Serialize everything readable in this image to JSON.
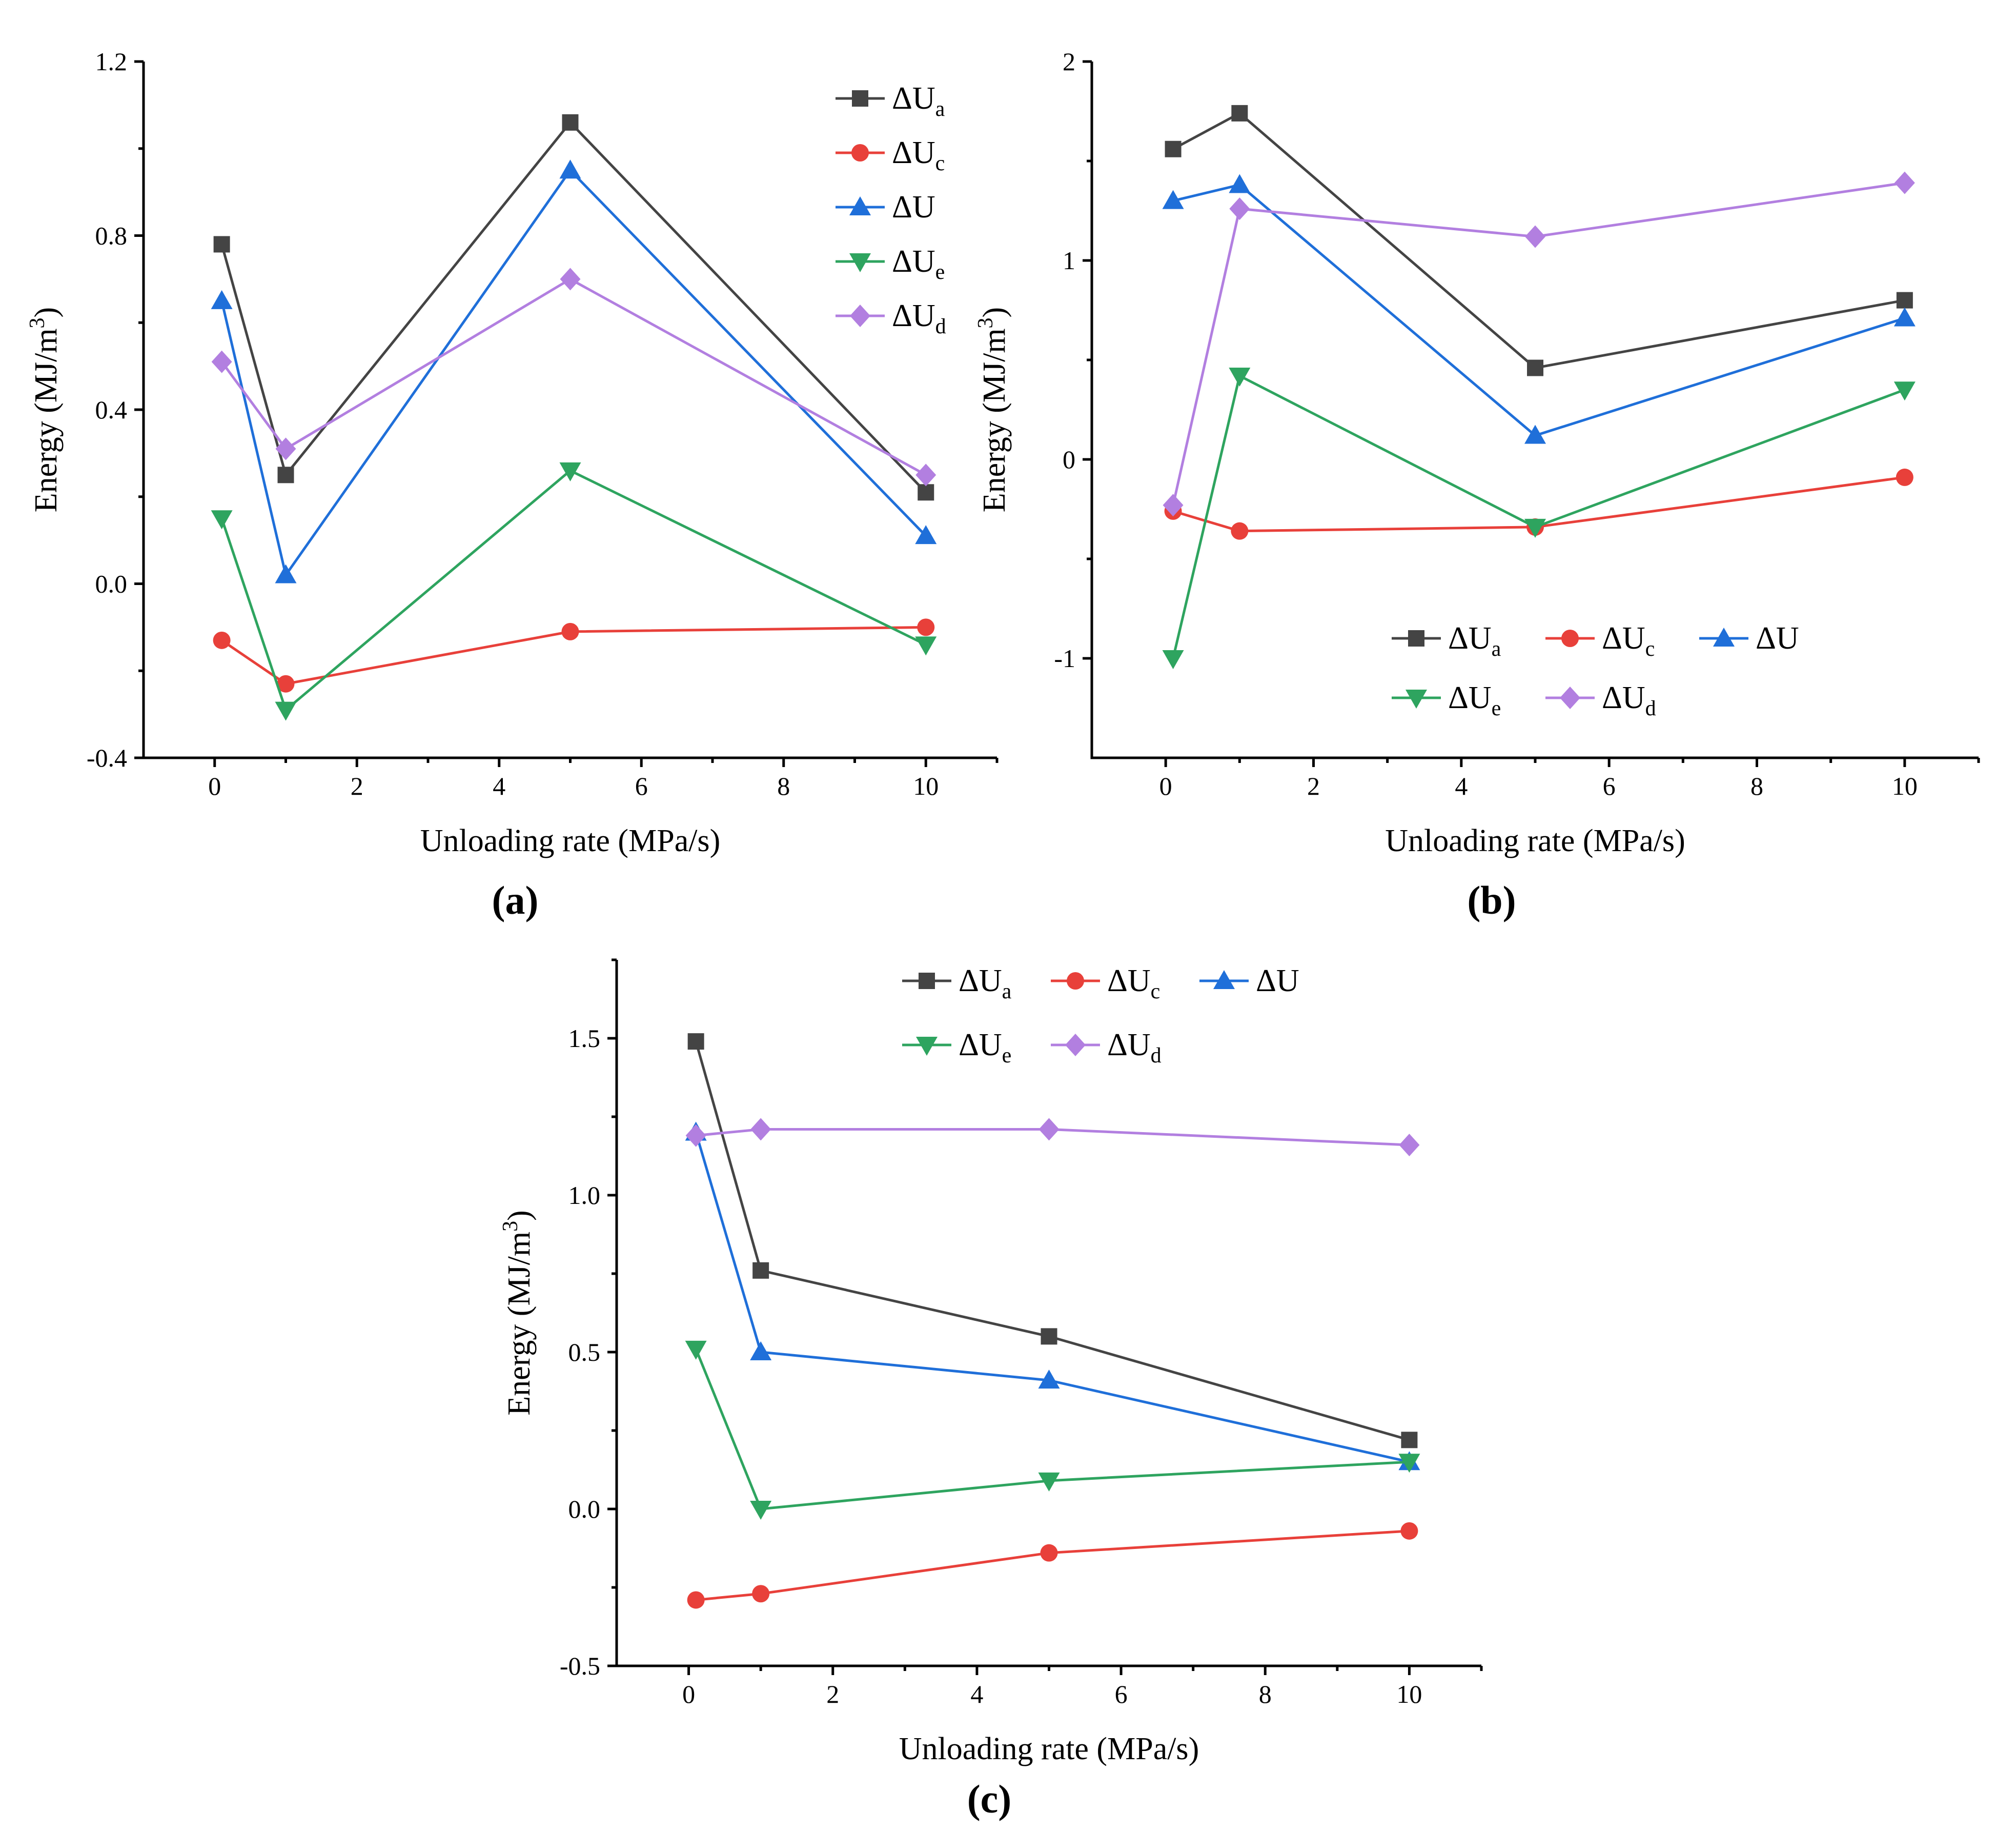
{
  "chart_data": [
    {
      "type": "line",
      "panel_label": "(a)",
      "xlabel": "Unloading rate (MPa/s)",
      "ylabel": "Energy (MJ/m3)",
      "xlim": [
        -1,
        11
      ],
      "ylim": [
        -0.4,
        1.2
      ],
      "xticks": [
        "0",
        "2",
        "4",
        "6",
        "8",
        "10"
      ],
      "yticks": [
        "-0.4",
        "0.0",
        "0.4",
        "0.8",
        "1.2"
      ],
      "legend_position": "top-right",
      "x": [
        0.1,
        1,
        5,
        10
      ],
      "series": [
        {
          "name": "ΔUa",
          "base": "ΔU",
          "sub": "a",
          "color": "#444444",
          "marker": "square",
          "values": [
            0.78,
            0.25,
            1.06,
            0.21
          ]
        },
        {
          "name": "ΔUc",
          "base": "ΔU",
          "sub": "c",
          "color": "#e8403a",
          "marker": "circle",
          "values": [
            -0.13,
            -0.23,
            -0.11,
            -0.1
          ]
        },
        {
          "name": "ΔU",
          "base": "ΔU",
          "sub": "",
          "color": "#1f6fd9",
          "marker": "triangle-up",
          "values": [
            0.65,
            0.02,
            0.95,
            0.11
          ]
        },
        {
          "name": "ΔUe",
          "base": "ΔU",
          "sub": "e",
          "color": "#2ea45f",
          "marker": "triangle-down",
          "values": [
            0.15,
            -0.29,
            0.26,
            -0.14
          ]
        },
        {
          "name": "ΔUd",
          "base": "ΔU",
          "sub": "d",
          "color": "#b27fe0",
          "marker": "diamond",
          "values": [
            0.51,
            0.31,
            0.7,
            0.25
          ]
        }
      ]
    },
    {
      "type": "line",
      "panel_label": "(b)",
      "xlabel": "Unloading rate (MPa/s)",
      "ylabel": "Energy (MJ/m3)",
      "xlim": [
        -1,
        11
      ],
      "ylim": [
        -1.5,
        2
      ],
      "xticks": [
        "0",
        "2",
        "4",
        "6",
        "8",
        "10"
      ],
      "yticks": [
        "-1",
        "0",
        "1",
        "2"
      ],
      "legend_position": "bottom-right",
      "x": [
        0.1,
        1,
        5,
        10
      ],
      "series": [
        {
          "name": "ΔUa",
          "base": "ΔU",
          "sub": "a",
          "color": "#444444",
          "marker": "square",
          "values": [
            1.56,
            1.74,
            0.46,
            0.8
          ]
        },
        {
          "name": "ΔUc",
          "base": "ΔU",
          "sub": "c",
          "color": "#e8403a",
          "marker": "circle",
          "values": [
            -0.26,
            -0.36,
            -0.34,
            -0.09
          ]
        },
        {
          "name": "ΔU",
          "base": "ΔU",
          "sub": "",
          "color": "#1f6fd9",
          "marker": "triangle-up",
          "values": [
            1.3,
            1.38,
            0.12,
            0.71
          ]
        },
        {
          "name": "ΔUe",
          "base": "ΔU",
          "sub": "e",
          "color": "#2ea45f",
          "marker": "triangle-down",
          "values": [
            -1.0,
            0.42,
            -0.34,
            0.35
          ]
        },
        {
          "name": "ΔUd",
          "base": "ΔU",
          "sub": "d",
          "color": "#b27fe0",
          "marker": "diamond",
          "values": [
            -0.23,
            1.26,
            1.12,
            1.39
          ]
        }
      ]
    },
    {
      "type": "line",
      "panel_label": "(c)",
      "xlabel": "Unloading rate (MPa/s)",
      "ylabel": "Energy (MJ/m3)",
      "xlim": [
        -1,
        11
      ],
      "ylim": [
        -0.5,
        1.75
      ],
      "xticks": [
        "0",
        "2",
        "4",
        "6",
        "8",
        "10"
      ],
      "yticks": [
        "-0.5",
        "0.0",
        "0.5",
        "1.0",
        "1.5"
      ],
      "legend_position": "top-right",
      "x": [
        0.1,
        1,
        5,
        10
      ],
      "series": [
        {
          "name": "ΔUa",
          "base": "ΔU",
          "sub": "a",
          "color": "#444444",
          "marker": "square",
          "values": [
            1.49,
            0.76,
            0.55,
            0.22
          ]
        },
        {
          "name": "ΔUc",
          "base": "ΔU",
          "sub": "c",
          "color": "#e8403a",
          "marker": "circle",
          "values": [
            -0.29,
            -0.27,
            -0.14,
            -0.07
          ]
        },
        {
          "name": "ΔU",
          "base": "ΔU",
          "sub": "",
          "color": "#1f6fd9",
          "marker": "triangle-up",
          "values": [
            1.2,
            0.5,
            0.41,
            0.15
          ]
        },
        {
          "name": "ΔUe",
          "base": "ΔU",
          "sub": "e",
          "color": "#2ea45f",
          "marker": "triangle-down",
          "values": [
            0.51,
            0.0,
            0.09,
            0.15
          ]
        },
        {
          "name": "ΔUd",
          "base": "ΔU",
          "sub": "d",
          "color": "#b27fe0",
          "marker": "diamond",
          "values": [
            1.19,
            1.21,
            1.21,
            1.16
          ]
        }
      ]
    }
  ]
}
